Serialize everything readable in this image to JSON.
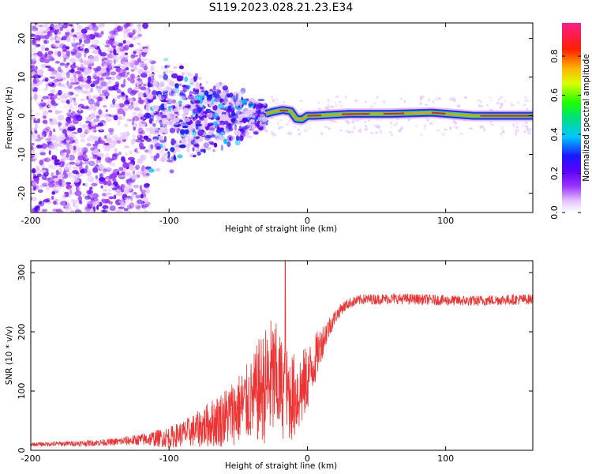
{
  "title": "S119.2023.028.21.23.E34",
  "colors": {
    "snr_line": "#ee3333",
    "axis": "#000000",
    "background": "#ffffff"
  },
  "chart_data": [
    {
      "type": "heatmap",
      "xlabel": "Height of straight line (km)",
      "ylabel": "Frequency (Hz)",
      "xlim": [
        -200,
        163
      ],
      "ylim": [
        -25,
        24
      ],
      "xticks": [
        -200,
        -100,
        0,
        100
      ],
      "yticks": [
        -20,
        -10,
        0,
        10,
        20
      ],
      "grid": false,
      "colorbar": {
        "label": "Normalized spectral amplitude",
        "range": [
          0,
          0.97
        ],
        "ticks": [
          0.0,
          0.2,
          0.4,
          0.6,
          0.8
        ],
        "colormap": "white-purple-blue-cyan-green-yellow-orange-red-pink"
      },
      "ridge": [
        {
          "x": -30,
          "y": 0.5
        },
        {
          "x": -25,
          "y": 1.0
        },
        {
          "x": -18,
          "y": 1.5
        },
        {
          "x": -12,
          "y": 1.2
        },
        {
          "x": -8,
          "y": -0.8
        },
        {
          "x": -4,
          "y": -1.0
        },
        {
          "x": 0,
          "y": 0.0
        },
        {
          "x": 5,
          "y": 0.0
        },
        {
          "x": 30,
          "y": 0.5
        },
        {
          "x": 60,
          "y": 0.5
        },
        {
          "x": 90,
          "y": 0.8
        },
        {
          "x": 120,
          "y": 0.0
        },
        {
          "x": 163,
          "y": 0.0
        }
      ],
      "noise_region": {
        "x_from": -200,
        "x_to": -115,
        "density": "high"
      },
      "transition_region": {
        "x_from": -115,
        "x_to": -30,
        "y_spread": [
          -12,
          10
        ]
      }
    },
    {
      "type": "line",
      "xlabel": "Height of straight line (km)",
      "ylabel": "SNR (10 * v/v)",
      "xlim": [
        -200,
        163
      ],
      "ylim": [
        0,
        320
      ],
      "xticks": [
        -200,
        -100,
        0,
        100
      ],
      "yticks": [
        0,
        100,
        200,
        300
      ],
      "grid": false,
      "series": [
        {
          "x": [
            -200,
            -180,
            -160,
            -140,
            -120,
            -100,
            -90,
            -80,
            -70,
            -60,
            -50,
            -40,
            -35,
            -30,
            -25,
            -20,
            -15,
            -10,
            -5,
            0,
            5,
            10,
            15,
            20,
            25,
            30,
            35,
            40,
            50,
            60,
            80,
            100,
            120,
            140,
            163
          ],
          "y": [
            10,
            11,
            12,
            14,
            18,
            22,
            28,
            35,
            45,
            55,
            70,
            85,
            100,
            110,
            120,
            110,
            95,
            90,
            100,
            120,
            150,
            180,
            205,
            225,
            240,
            248,
            252,
            255,
            255,
            256,
            255,
            253,
            252,
            254,
            255
          ],
          "noise_amplitude": [
            3,
            4,
            5,
            6,
            10,
            18,
            22,
            30,
            40,
            50,
            60,
            70,
            90,
            100,
            110,
            90,
            80,
            75,
            70,
            55,
            45,
            30,
            20,
            12,
            10,
            9,
            9,
            9,
            9,
            9,
            9,
            9,
            9,
            9,
            9
          ],
          "peak": {
            "x": -16,
            "y": 320
          }
        }
      ]
    }
  ]
}
